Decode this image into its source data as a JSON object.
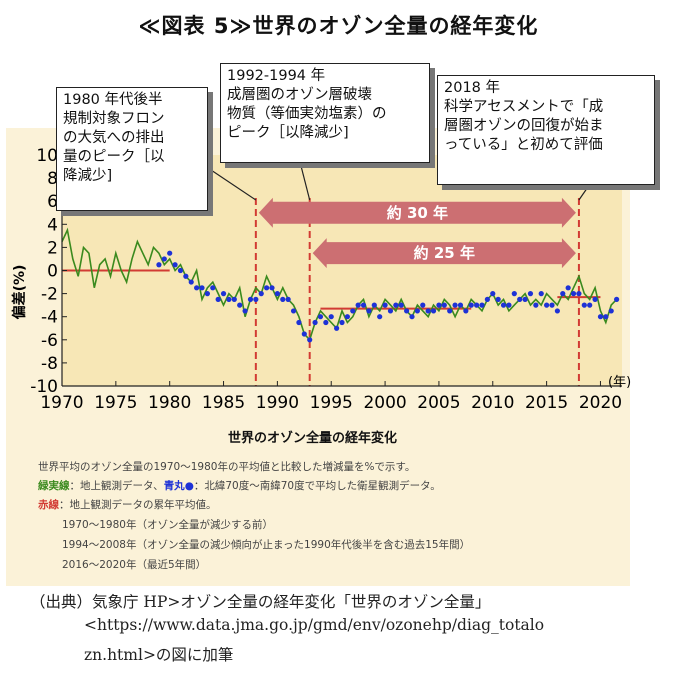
{
  "figure_title": "≪図表 5≫世界のオゾン全量の経年変化",
  "callouts": [
    {
      "text": "1980 年代後半\n規制対象フロン\nの大気への排出\n量のピーク［以\n降減少]"
    },
    {
      "text": "1992-1994 年\n成層圏のオゾン層破壊\n物質（等価実効塩素）の\nピーク［以降減少]"
    },
    {
      "text": "2018 年\n科学アセスメントで「成\n層圏オゾンの回復が始ま\nっている」と初めて評価"
    }
  ],
  "chart_data": {
    "type": "line",
    "title": "世界のオゾン全量の経年変化",
    "xlabel": "",
    "x_unit": "(年)",
    "ylabel": "偏差(%)",
    "xlim": [
      1970,
      2022
    ],
    "ylim": [
      -10,
      10
    ],
    "xticks": [
      1970,
      1975,
      1980,
      1985,
      1990,
      1995,
      2000,
      2005,
      2010,
      2015,
      2020
    ],
    "yticks": [
      10,
      8,
      6,
      4,
      2,
      0,
      -2,
      -4,
      -6,
      -8,
      -10
    ],
    "grid": false,
    "series": [
      {
        "name": "緑実線",
        "style": "line",
        "x": [
          1970,
          1970.5,
          1971,
          1971.5,
          1972,
          1972.5,
          1973,
          1973.5,
          1974,
          1974.5,
          1975,
          1975.5,
          1976,
          1976.5,
          1977,
          1977.5,
          1978,
          1978.5,
          1979,
          1979.5,
          1980,
          1980.5,
          1981,
          1981.5,
          1982,
          1982.5,
          1983,
          1983.5,
          1984,
          1984.5,
          1985,
          1985.5,
          1986,
          1986.5,
          1987,
          1987.5,
          1988,
          1988.5,
          1989,
          1989.5,
          1990,
          1990.5,
          1991,
          1991.5,
          1992,
          1992.5,
          1993,
          1993.5,
          1994,
          1994.5,
          1995,
          1995.5,
          1996,
          1996.5,
          1997,
          1997.5,
          1998,
          1998.5,
          1999,
          1999.5,
          2000,
          2000.5,
          2001,
          2001.5,
          2002,
          2002.5,
          2003,
          2003.5,
          2004,
          2004.5,
          2005,
          2005.5,
          2006,
          2006.5,
          2007,
          2007.5,
          2008,
          2008.5,
          2009,
          2009.5,
          2010,
          2010.5,
          2011,
          2011.5,
          2012,
          2012.5,
          2013,
          2013.5,
          2014,
          2014.5,
          2015,
          2015.5,
          2016,
          2016.5,
          2017,
          2017.5,
          2018,
          2018.5,
          2019,
          2019.5,
          2020,
          2020.5,
          2021,
          2021.5
        ],
        "y": [
          2.5,
          3.5,
          1.0,
          -0.5,
          2.0,
          1.5,
          -1.5,
          0.5,
          1.0,
          -0.5,
          1.5,
          0.0,
          -1.0,
          1.0,
          2.5,
          1.5,
          0.5,
          2.0,
          1.5,
          0.5,
          1.0,
          0.0,
          0.5,
          -0.5,
          -1.0,
          0.0,
          -2.5,
          -1.5,
          -1.0,
          -2.0,
          -3.0,
          -2.0,
          -2.5,
          -1.5,
          -4.0,
          -2.5,
          -1.5,
          -2.0,
          -0.5,
          -1.5,
          -2.5,
          -1.5,
          -2.5,
          -3.0,
          -4.0,
          -5.5,
          -6.0,
          -4.5,
          -3.5,
          -4.0,
          -4.5,
          -5.0,
          -3.5,
          -4.5,
          -4.0,
          -3.0,
          -2.5,
          -4.0,
          -3.0,
          -3.5,
          -2.5,
          -3.0,
          -3.5,
          -2.5,
          -3.5,
          -4.0,
          -3.0,
          -3.5,
          -4.0,
          -3.0,
          -3.5,
          -2.5,
          -3.0,
          -4.0,
          -3.0,
          -3.5,
          -2.5,
          -3.0,
          -3.5,
          -2.5,
          -2.0,
          -3.0,
          -2.5,
          -3.5,
          -3.0,
          -2.5,
          -2.0,
          -3.0,
          -2.5,
          -3.0,
          -2.0,
          -2.5,
          -3.0,
          -2.0,
          -2.5,
          -1.5,
          -0.5,
          -2.0,
          -2.5,
          -1.5,
          -3.5,
          -4.5,
          -3.0,
          -2.5
        ]
      },
      {
        "name": "青丸",
        "style": "markers",
        "x": [
          1979,
          1979.5,
          1980,
          1980.5,
          1981,
          1981.5,
          1982,
          1982.5,
          1983,
          1983.5,
          1984,
          1984.5,
          1985,
          1985.5,
          1986,
          1986.5,
          1987,
          1987.5,
          1988,
          1988.5,
          1989,
          1989.5,
          1990,
          1990.5,
          1991,
          1991.5,
          1992,
          1992.5,
          1993,
          1993.5,
          1994,
          1994.5,
          1995,
          1995.5,
          1996,
          1996.5,
          1997,
          1997.5,
          1998,
          1998.5,
          1999,
          1999.5,
          2000,
          2000.5,
          2001,
          2001.5,
          2002,
          2002.5,
          2003,
          2003.5,
          2004,
          2004.5,
          2005,
          2005.5,
          2006,
          2006.5,
          2007,
          2007.5,
          2008,
          2008.5,
          2009,
          2009.5,
          2010,
          2010.5,
          2011,
          2011.5,
          2012,
          2012.5,
          2013,
          2013.5,
          2014,
          2014.5,
          2015,
          2015.5,
          2016,
          2016.5,
          2017,
          2017.5,
          2018,
          2018.5,
          2019,
          2019.5,
          2020,
          2020.5,
          2021,
          2021.5
        ],
        "y": [
          0.5,
          1.0,
          1.5,
          0.5,
          0.0,
          -0.5,
          -1.0,
          -1.5,
          -1.5,
          -2.0,
          -1.5,
          -2.5,
          -2.0,
          -2.5,
          -2.5,
          -3.0,
          -3.5,
          -2.5,
          -2.5,
          -2.0,
          -1.5,
          -1.5,
          -2.0,
          -2.5,
          -2.5,
          -3.5,
          -4.5,
          -5.5,
          -6.0,
          -4.5,
          -4.0,
          -4.5,
          -4.0,
          -5.0,
          -4.5,
          -4.0,
          -3.5,
          -3.0,
          -3.0,
          -3.5,
          -3.0,
          -4.0,
          -3.0,
          -3.5,
          -3.0,
          -3.0,
          -3.5,
          -4.0,
          -3.5,
          -3.0,
          -3.5,
          -3.5,
          -3.0,
          -3.0,
          -3.5,
          -3.0,
          -3.0,
          -3.5,
          -3.0,
          -3.0,
          -3.0,
          -2.5,
          -2.0,
          -2.5,
          -3.0,
          -3.0,
          -2.0,
          -2.5,
          -2.5,
          -2.0,
          -3.0,
          -2.0,
          -3.0,
          -3.0,
          -3.5,
          -2.0,
          -1.5,
          -2.0,
          -2.0,
          -3.0,
          -3.0,
          -2.5,
          -4.0,
          -4.0,
          -3.5,
          -2.5
        ]
      },
      {
        "name": "赤線",
        "style": "step",
        "segments": [
          {
            "x": [
              1970,
              1980
            ],
            "y": [
              0,
              0
            ]
          },
          {
            "x": [
              1994,
              2008
            ],
            "y": [
              -3.3,
              -3.3
            ]
          },
          {
            "x": [
              2016,
              2020
            ],
            "y": [
              -2.3,
              -2.3
            ]
          }
        ]
      }
    ],
    "vlines": [
      1988,
      1993,
      2018
    ],
    "arrows": [
      {
        "label": "約 30 年",
        "x": [
          1988,
          2018
        ],
        "y": 5
      },
      {
        "label": "約 25 年",
        "x": [
          1993,
          2018
        ],
        "y": 1.5
      }
    ]
  },
  "legend": {
    "title": "世界のオゾン全量の経年変化",
    "line1": "世界平均のオゾン全量の1970～1980年の平均値と比較した増減量を%で示す。",
    "line2_key": "緑実線",
    "line2_mid": "：地上観測データ、",
    "line2_key2": "青丸",
    "line2_rest": "：北緯70度～南緯70度で平均した衛星観測データ。",
    "line3_key": "赤線",
    "line3_rest": "：地上観測データの累年平均値。",
    "line4": "1970～1980年（オゾン全量が減少する前）",
    "line5": "1994～2008年（オゾン全量の減少傾向が止まった1990年代後半を含む過去15年間）",
    "line6": "2016～2020年（最近5年間）"
  },
  "source": {
    "line1": "（出典）気象庁 HP>オゾン全量の経年変化「世界のオゾン全量」",
    "line2": "<https://www.data.jma.go.jp/gmd/env/ozonehp/diag_totalo",
    "line3": "zn.html>の図に加筆"
  },
  "colors": {
    "panel": "#fbf2d8",
    "plot_bg": "#f7e7b6",
    "green": "#3a8a1e",
    "blue": "#1e32d6",
    "red": "#d23b33",
    "arrow": "#cc6f72"
  }
}
